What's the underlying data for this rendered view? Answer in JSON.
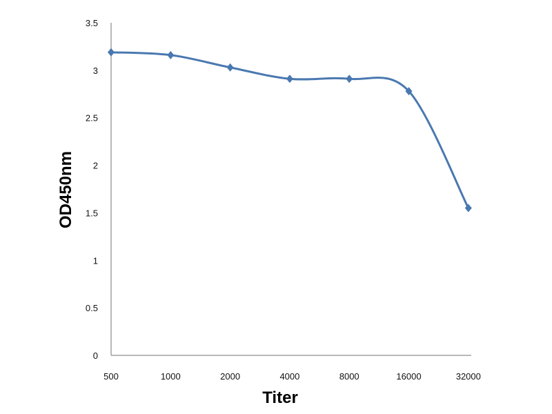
{
  "chart_data": {
    "type": "line",
    "title": "",
    "xlabel": "Titer",
    "ylabel": "OD450nm",
    "categories": [
      "500",
      "1000",
      "2000",
      "4000",
      "8000",
      "16000",
      "32000"
    ],
    "series": [
      {
        "name": "OD450nm",
        "values": [
          3.19,
          3.16,
          3.03,
          2.91,
          2.91,
          2.78,
          1.55
        ],
        "color": "#4a78b0",
        "marker": "diamond",
        "smooth": true
      }
    ],
    "ylim": [
      0,
      3.5
    ],
    "yticks": [
      "0",
      "0.5",
      "1",
      "1.5",
      "2",
      "2.5",
      "3",
      "3.5"
    ],
    "grid": false,
    "legend": "none",
    "axis_color": "#a0a0a0"
  }
}
